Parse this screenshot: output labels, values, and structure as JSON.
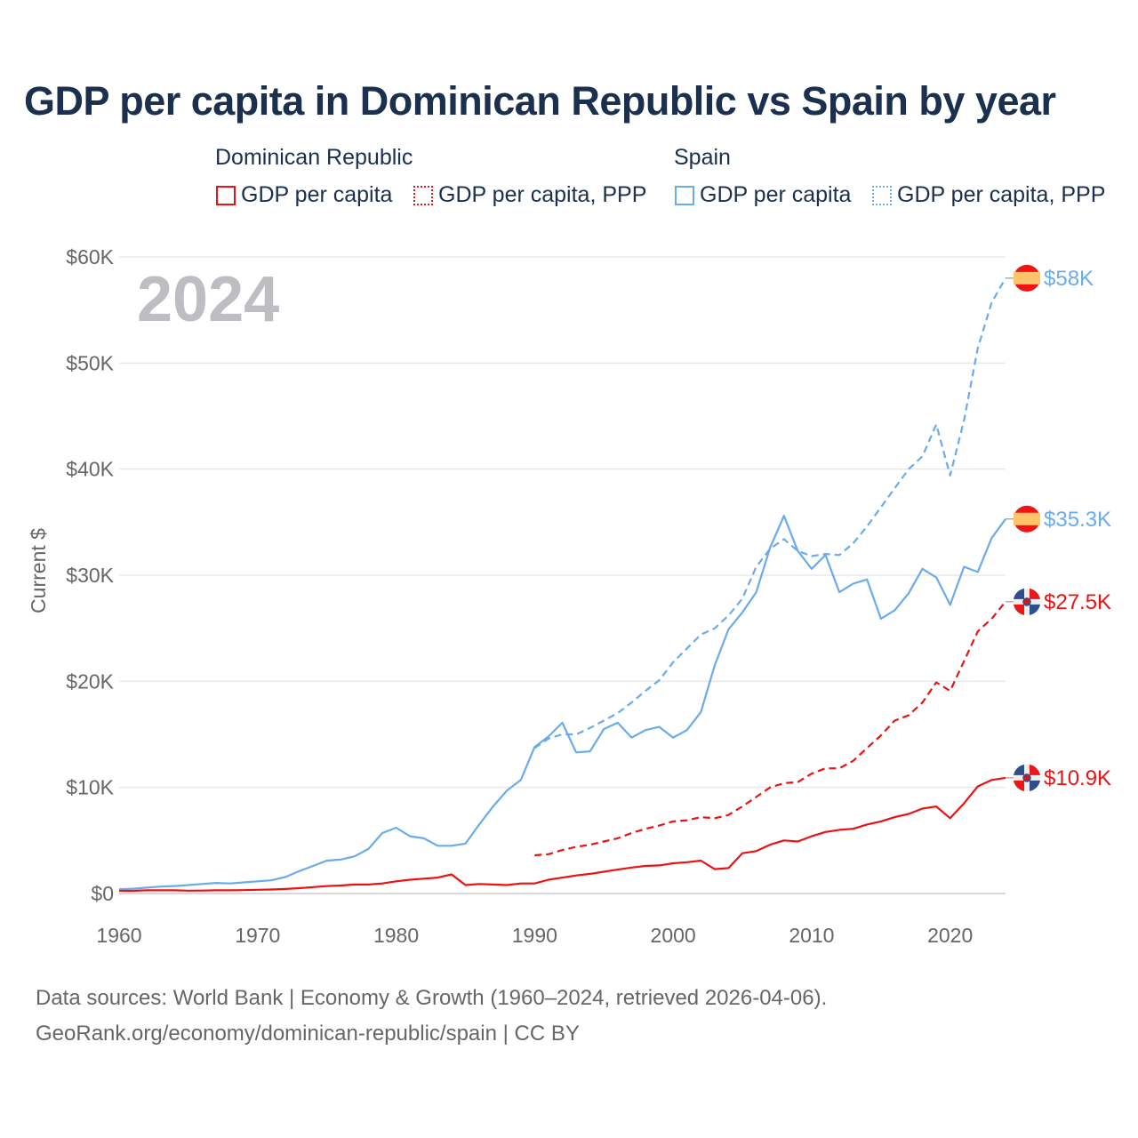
{
  "title": "GDP per capita in Dominican Republic vs Spain by year",
  "legend": {
    "groups": [
      {
        "name": "Dominican Republic",
        "items": [
          "GDP per capita",
          "GDP per capita, PPP"
        ],
        "color": "#ee1111"
      },
      {
        "name": "Spain",
        "items": [
          "GDP per capita",
          "GDP per capita, PPP"
        ],
        "color": "#6aabec"
      }
    ]
  },
  "year_label": "2024",
  "footer": {
    "line1": "Data sources: World Bank | Economy & Growth (1960–2024, retrieved 2026-04-06).",
    "line2": "GeoRank.org/economy/dominican-republic/spain | CC BY"
  },
  "chart_data": {
    "type": "line",
    "title": "GDP per capita in Dominican Republic vs Spain by year",
    "xlabel": "",
    "ylabel": "Current $",
    "xlim": [
      1960,
      2024
    ],
    "ylim": [
      0,
      60000
    ],
    "x_ticks": [
      1960,
      1970,
      1980,
      1990,
      2000,
      2010,
      2020
    ],
    "x_tick_labels": [
      "1960",
      "1970",
      "1980",
      "1990",
      "2000",
      "2010",
      "2020"
    ],
    "y_ticks": [
      0,
      10000,
      20000,
      30000,
      40000,
      50000,
      60000
    ],
    "y_tick_labels": [
      "$0",
      "$10K",
      "$20K",
      "$30K",
      "$40K",
      "$50K",
      "$60K"
    ],
    "grid": true,
    "legend_position": "top",
    "series": [
      {
        "name": "Spain GDP per capita, PPP",
        "country": "Spain",
        "color": "#6aabec",
        "dash": true,
        "start_year": 1990,
        "end_label": "$58K",
        "values": [
          13.7,
          14.6,
          15.0,
          15.0,
          15.6,
          16.3,
          17.0,
          18.0,
          19.1,
          20.1,
          21.8,
          23.1,
          24.4,
          25.0,
          26.2,
          27.8,
          30.8,
          32.5,
          33.4,
          32.3,
          31.8,
          32.0,
          31.9,
          33.0,
          34.6,
          36.4,
          38.2,
          40.0,
          41.2,
          44.2,
          39.4,
          44.6,
          51.4,
          55.7,
          58.0
        ]
      },
      {
        "name": "Spain GDP per capita",
        "country": "Spain",
        "color": "#6aabec",
        "dash": false,
        "start_year": 1960,
        "end_label": "$35.3K",
        "values": [
          0.4,
          0.45,
          0.55,
          0.65,
          0.7,
          0.8,
          0.9,
          1.0,
          0.95,
          1.05,
          1.15,
          1.25,
          1.55,
          2.1,
          2.6,
          3.1,
          3.2,
          3.5,
          4.2,
          5.7,
          6.2,
          5.4,
          5.2,
          4.5,
          4.5,
          4.7,
          6.5,
          8.2,
          9.7,
          10.7,
          13.8,
          14.8,
          16.1,
          13.3,
          13.4,
          15.5,
          16.1,
          14.7,
          15.4,
          15.7,
          14.7,
          15.4,
          17.1,
          21.5,
          24.9,
          26.5,
          28.4,
          32.6,
          35.6,
          32.3,
          30.6,
          31.9,
          28.4,
          29.2,
          29.6,
          25.9,
          26.7,
          28.3,
          30.6,
          29.8,
          27.2,
          30.8,
          30.3,
          33.5,
          35.3
        ]
      },
      {
        "name": "Dominican Republic GDP per capita, PPP",
        "country": "Dominican Republic",
        "color": "#ee1111",
        "dash": true,
        "start_year": 1990,
        "end_label": "$27.5K",
        "values": [
          3.6,
          3.7,
          4.1,
          4.4,
          4.6,
          4.9,
          5.2,
          5.7,
          6.1,
          6.4,
          6.8,
          6.9,
          7.2,
          7.1,
          7.4,
          8.2,
          9.1,
          10.0,
          10.4,
          10.5,
          11.3,
          11.8,
          11.8,
          12.5,
          13.7,
          14.9,
          16.3,
          16.8,
          18.0,
          19.9,
          19.1,
          21.9,
          24.7,
          25.9,
          27.5
        ]
      },
      {
        "name": "Dominican Republic GDP per capita",
        "country": "Dominican Republic",
        "color": "#ee1111",
        "dash": false,
        "start_year": 1960,
        "end_label": "$10.9K",
        "values": [
          0.25,
          0.25,
          0.3,
          0.3,
          0.3,
          0.27,
          0.28,
          0.3,
          0.3,
          0.32,
          0.35,
          0.38,
          0.43,
          0.5,
          0.6,
          0.7,
          0.75,
          0.85,
          0.85,
          0.95,
          1.15,
          1.3,
          1.4,
          1.5,
          1.8,
          0.8,
          0.9,
          0.85,
          0.8,
          0.95,
          0.95,
          1.3,
          1.5,
          1.7,
          1.85,
          2.05,
          2.25,
          2.45,
          2.6,
          2.65,
          2.85,
          2.95,
          3.1,
          2.3,
          2.4,
          3.8,
          4.0,
          4.6,
          5.0,
          4.9,
          5.4,
          5.8,
          6.0,
          6.1,
          6.5,
          6.8,
          7.2,
          7.5,
          8.0,
          8.2,
          7.1,
          8.5,
          10.1,
          10.7,
          10.9
        ]
      }
    ],
    "value_unit": "thousand current $"
  }
}
